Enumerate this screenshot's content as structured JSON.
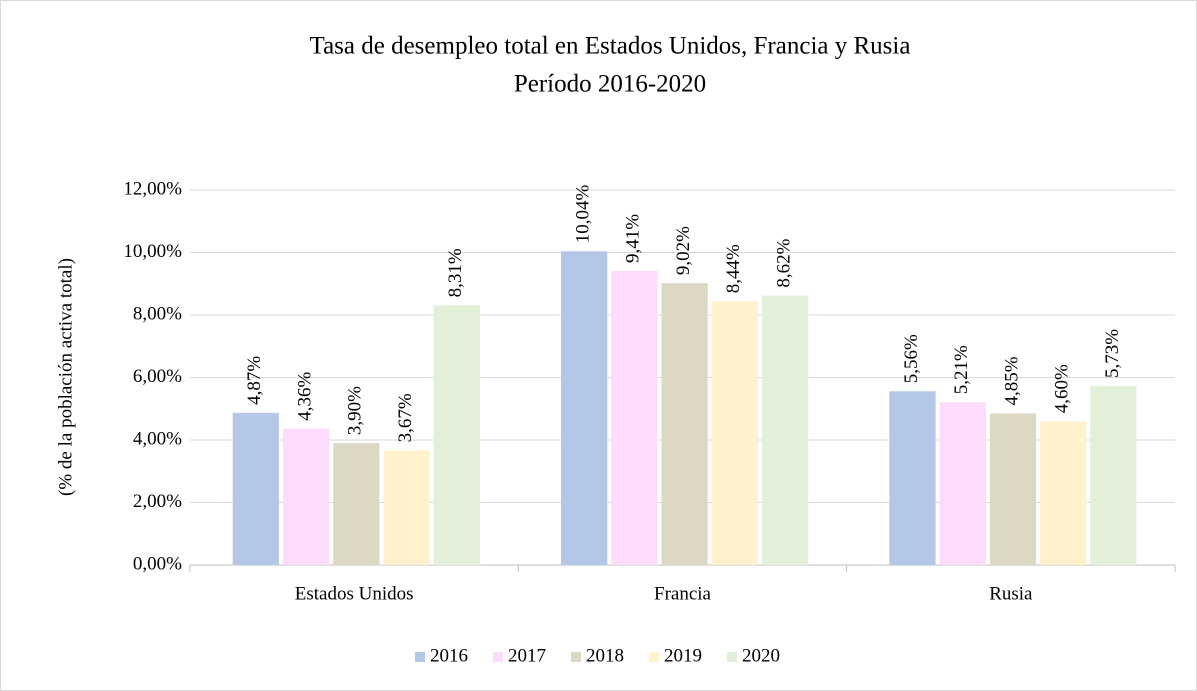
{
  "chart_data": {
    "type": "bar",
    "title": "Tasa de desempleo total en Estados Unidos, Francia y Rusia",
    "subtitle": "Período 2016-2020",
    "y_label": "(% de la población activa total)",
    "categories": [
      "Estados Unidos",
      "Francia",
      "Rusia"
    ],
    "series": [
      {
        "name": "2016",
        "color": "#b4c7e7",
        "values": [
          4.87,
          10.04,
          5.56
        ],
        "value_labels": [
          "4,87%",
          "10,04%",
          "5,56%"
        ]
      },
      {
        "name": "2017",
        "color": "#fcdcfa",
        "values": [
          4.36,
          9.41,
          5.21
        ],
        "value_labels": [
          "4,36%",
          "9,41%",
          "5,21%"
        ]
      },
      {
        "name": "2018",
        "color": "#ddd8c4",
        "values": [
          3.9,
          9.02,
          4.85
        ],
        "value_labels": [
          "3,90%",
          "9,02%",
          "4,85%"
        ]
      },
      {
        "name": "2019",
        "color": "#fff2cc",
        "values": [
          3.67,
          8.44,
          4.6
        ],
        "value_labels": [
          "3,67%",
          "8,44%",
          "4,60%"
        ]
      },
      {
        "name": "2020",
        "color": "#e2efd9",
        "values": [
          8.31,
          8.62,
          5.73
        ],
        "value_labels": [
          "8,31%",
          "8,62%",
          "5,73%"
        ]
      }
    ],
    "ylim": [
      0,
      12
    ],
    "yticks": [
      {
        "value": 0,
        "label": "0,00%"
      },
      {
        "value": 2,
        "label": "2,00%"
      },
      {
        "value": 4,
        "label": "4,00%"
      },
      {
        "value": 6,
        "label": "6,00%"
      },
      {
        "value": 8,
        "label": "8,00%"
      },
      {
        "value": 10,
        "label": "10,00%"
      },
      {
        "value": 12,
        "label": "12,00%"
      }
    ],
    "grid": true,
    "legend": "bottom"
  }
}
